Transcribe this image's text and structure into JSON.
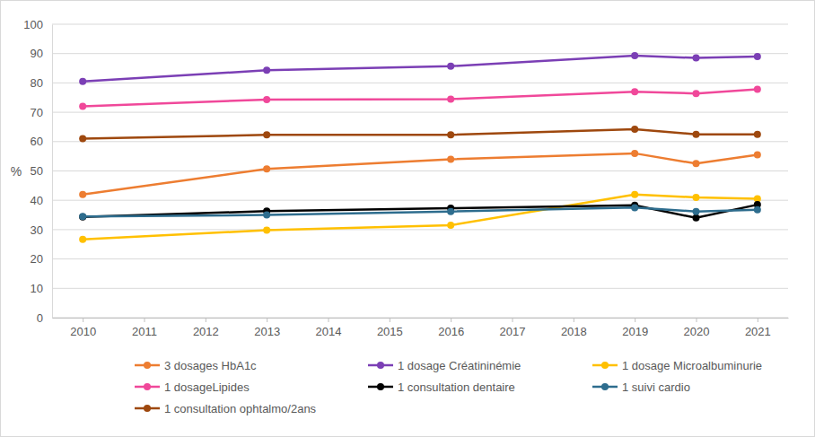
{
  "chart_data": {
    "type": "line",
    "y_label": "%",
    "x": [
      2010,
      2013,
      2016,
      2019,
      2020,
      2021
    ],
    "xlim": [
      2009.5,
      2021.5
    ],
    "xticks": [
      2010,
      2011,
      2012,
      2013,
      2014,
      2015,
      2016,
      2017,
      2018,
      2019,
      2020,
      2021
    ],
    "ylim": [
      0,
      100
    ],
    "yticks": [
      0,
      10,
      20,
      30,
      40,
      50,
      60,
      70,
      80,
      90,
      100
    ],
    "grid": true,
    "legend": "bottom",
    "marker": "circle",
    "series": [
      {
        "name": "3 dosages HbA1c",
        "color": "#ED7D31",
        "values": [
          42,
          50.7,
          54,
          56,
          52.5,
          55.5
        ]
      },
      {
        "name": "1 dosage Créatininémie",
        "color": "#7B3FB5",
        "values": [
          80.5,
          84.3,
          85.7,
          89.3,
          88.5,
          89
        ]
      },
      {
        "name": "1 dosage Microalbuminurie",
        "color": "#FFC000",
        "values": [
          26.7,
          29.8,
          31.5,
          42,
          41,
          40.5
        ]
      },
      {
        "name": "1 dosageLipides",
        "color": "#F0489A",
        "values": [
          72,
          74.3,
          74.5,
          77,
          76.4,
          77.8
        ]
      },
      {
        "name": "1 consultation dentaire",
        "color": "#000000",
        "values": [
          34.3,
          36.3,
          37.3,
          38.3,
          34,
          38.5
        ]
      },
      {
        "name": "1 suivi cardio",
        "color": "#2E6D8E",
        "values": [
          34.5,
          35,
          36.2,
          37.5,
          36.2,
          36.8
        ]
      },
      {
        "name": "1 consultation ophtalmo/2ans",
        "color": "#9E480E",
        "values": [
          61,
          62.3,
          62.3,
          64.2,
          62.5,
          62.5
        ]
      }
    ]
  }
}
